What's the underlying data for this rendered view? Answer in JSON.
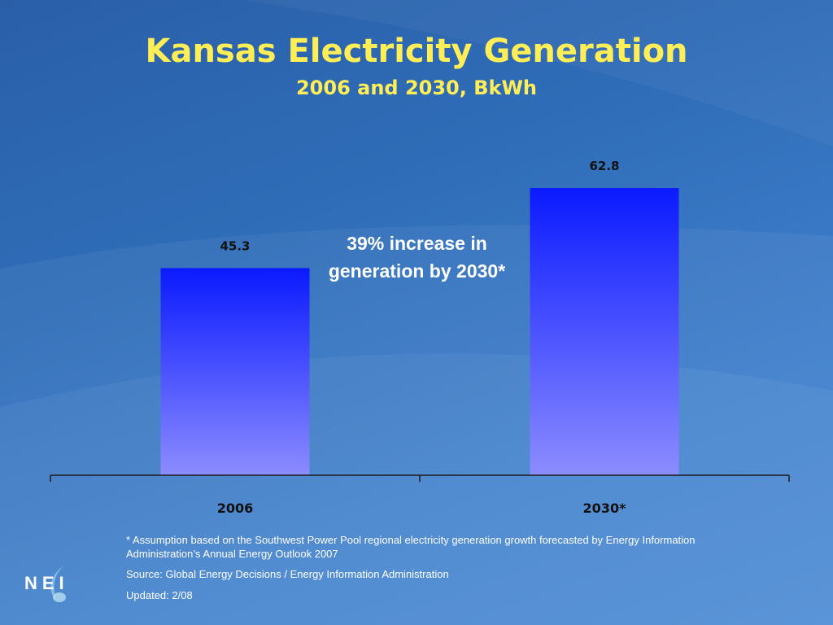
{
  "header": {
    "title": "Kansas Electricity Generation",
    "subtitle": "2006 and 2030, BkWh"
  },
  "chart_data": {
    "type": "bar",
    "title": "Kansas Electricity Generation",
    "subtitle": "2006 and 2030, BkWh",
    "categories": [
      "2006",
      "2030*"
    ],
    "values": [
      45.3,
      62.8
    ],
    "data_labels": [
      "45.3",
      "62.8"
    ],
    "ylim": [
      0,
      100
    ],
    "grid": false,
    "legend": "none",
    "xlabel": "",
    "ylabel": "",
    "annotation": "39% increase in generation by 2030*",
    "colors": {
      "bar_top": "#0a1aff",
      "bar_bottom": "#8c8cff",
      "axis": "#1a1a1a",
      "label": "#111111"
    }
  },
  "footnotes": {
    "assumption": "* Assumption based on the Southwest Power Pool regional electricity generation growth forecasted by Energy Information Administration’s Annual Energy Outlook 2007",
    "source": "Source: Global Energy Decisions / Energy Information Administration",
    "updated": "Updated: 2/08"
  },
  "logo": {
    "icon": "nei-logo-icon",
    "text": "NEI"
  },
  "colors": {
    "title": "#ffee55",
    "background": "#2f6db8",
    "text": "#ffffff"
  }
}
